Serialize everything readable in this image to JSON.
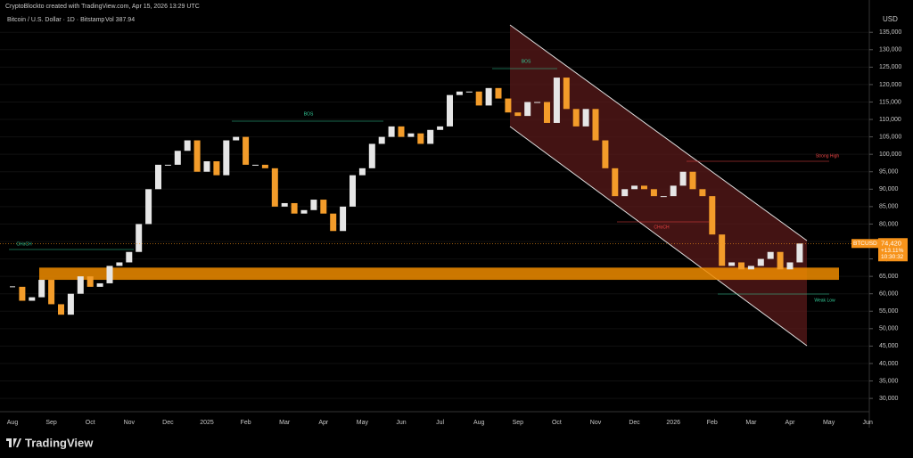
{
  "header": {
    "credit": "CryptoBlockto created with TradingView.com, Apr 15, 2026 13:29 UTC",
    "symbol_line": "Bitcoin / U.S. Dollar · 1D · Bitstamp",
    "volume": "Vol 387.94",
    "currency": "USD"
  },
  "chart_data": {
    "type": "candlestick",
    "categories": [
      "Aug",
      null,
      null,
      null,
      "Sep",
      null,
      null,
      null,
      "Oct",
      null,
      null,
      null,
      "Nov",
      null,
      null,
      null,
      "Dec",
      null,
      null,
      null,
      "2025",
      null,
      null,
      null,
      "Feb",
      null,
      null,
      null,
      "Mar",
      null,
      null,
      null,
      "Apr",
      null,
      null,
      null,
      "May",
      null,
      null,
      null,
      "Jun",
      null,
      null,
      null,
      "Jul",
      null,
      null,
      null,
      "Aug",
      null,
      null,
      null,
      "Sep",
      null,
      null,
      null,
      "Oct",
      null,
      null,
      null,
      "Nov",
      null,
      null,
      null,
      "Dec",
      null,
      null,
      null,
      "2026",
      null,
      null,
      null,
      "Feb",
      null,
      null,
      null,
      "Mar",
      null,
      null,
      null,
      "Apr",
      null,
      null,
      null,
      "May",
      null,
      null,
      null,
      "Jun",
      null,
      null,
      null
    ],
    "values": [
      62000,
      58000,
      59000,
      64000,
      57000,
      54000,
      60000,
      65000,
      62000,
      63000,
      68000,
      69000,
      72000,
      80000,
      90000,
      97000,
      97000,
      101000,
      104000,
      95000,
      98000,
      94000,
      104000,
      105000,
      97000,
      97000,
      96000,
      85000,
      86000,
      83000,
      84000,
      87000,
      83000,
      78000,
      85000,
      94000,
      96000,
      103000,
      105000,
      108000,
      105000,
      106000,
      103000,
      107000,
      108000,
      117000,
      118000,
      118000,
      114000,
      119000,
      116000,
      112000,
      111000,
      115000,
      115000,
      109000,
      122000,
      113000,
      108000,
      113000,
      104000,
      96000,
      88000,
      90000,
      91000,
      90000,
      88000,
      88000,
      91000,
      95000,
      90000,
      88000,
      77000,
      68000,
      69000,
      67000,
      68000,
      70000,
      72000,
      67000,
      69000,
      74420,
      null,
      null,
      null,
      null,
      null,
      null,
      null,
      null,
      null,
      null
    ],
    "up_color": "#e6e6e6",
    "down_color": "#f39c2a",
    "ylim": [
      26700,
      141700
    ],
    "yticks": [
      {
        "value": 30000,
        "label": "30,000"
      },
      {
        "value": 35000,
        "label": "35,000"
      },
      {
        "value": 40000,
        "label": "40,000"
      },
      {
        "value": 45000,
        "label": "45,000"
      },
      {
        "value": 50000,
        "label": "50,000"
      },
      {
        "value": 55000,
        "label": "55,000"
      },
      {
        "value": 60000,
        "label": "60,000"
      },
      {
        "value": 65000,
        "label": "65,000"
      },
      {
        "value": 70000,
        "label": "70,000"
      },
      {
        "value": 75000,
        "label": "75,000"
      },
      {
        "value": 80000,
        "label": "80,000"
      },
      {
        "value": 85000,
        "label": "85,000"
      },
      {
        "value": 90000,
        "label": "90,000"
      },
      {
        "value": 95000,
        "label": "95,000"
      },
      {
        "value": 100000,
        "label": "100,000"
      },
      {
        "value": 105000,
        "label": "105,000"
      },
      {
        "value": 110000,
        "label": "110,000"
      },
      {
        "value": 115000,
        "label": "115,000"
      },
      {
        "value": 120000,
        "label": "120,000"
      },
      {
        "value": 125000,
        "label": "125,000"
      },
      {
        "value": 130000,
        "label": "130,000"
      },
      {
        "value": 135000,
        "label": "135,000"
      }
    ],
    "zone": {
      "low": 64000,
      "high": 67500,
      "color": "#f08c00"
    },
    "last_price": {
      "symbol": "BTCUSD",
      "label": "74,420",
      "change": "+13.11%",
      "countdown": "10:30:32",
      "color": "#f7931a"
    },
    "annotations": [
      "BOS",
      "BOS",
      "CHoCH",
      "CHoCH",
      "Strong High",
      "Weak Low"
    ]
  },
  "footer": {
    "brand": "TradingView"
  }
}
